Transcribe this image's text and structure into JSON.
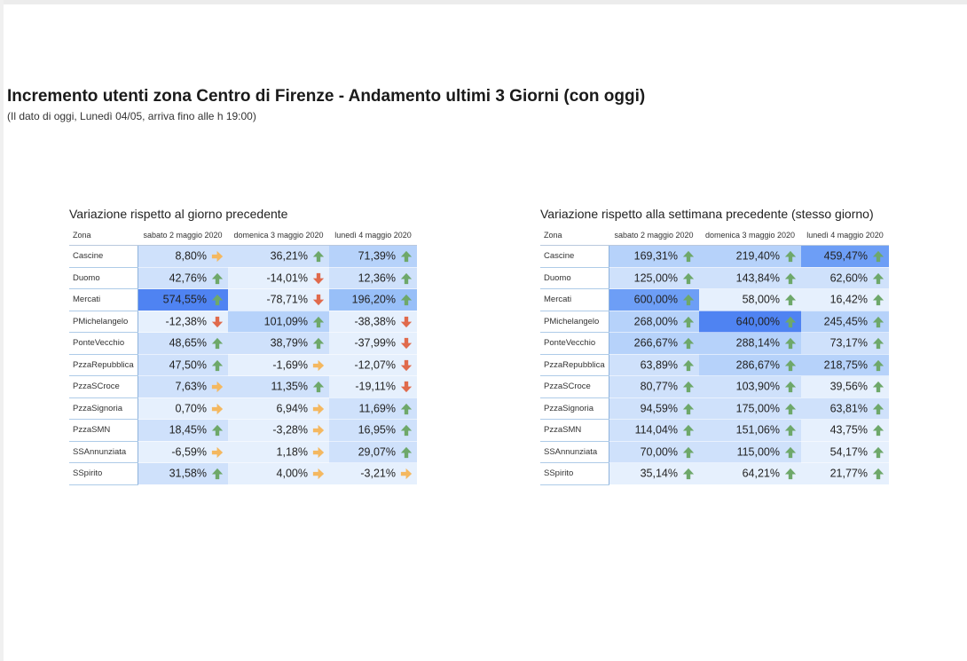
{
  "header": {
    "title": "Incremento utenti zona Centro di Firenze - Andamento ultimi 3 Giorni (con oggi)",
    "subtitle": "(Il dato di oggi, Lunedì 04/05, arriva fino alle h 19:00)"
  },
  "colors": {
    "up": "#6ea86a",
    "flat": "#f4b860",
    "down": "#e06a4c",
    "cell_scale": [
      "#e6f0fd",
      "#cfe1fb",
      "#b6d2fa",
      "#98bff8",
      "#6d9ef6",
      "#4f83f2"
    ]
  },
  "tables": [
    {
      "title": "Variazione rispetto al giorno precedente",
      "columns": [
        "Zona",
        "sabato 2 maggio 2020",
        "domenica 3 maggio 2020",
        "lunedì 4 maggio 2020"
      ],
      "rows": [
        {
          "zona": "Cascine",
          "cells": [
            {
              "value": "8,80%",
              "arrow": "right",
              "shade": 1
            },
            {
              "value": "36,21%",
              "arrow": "up",
              "shade": 1
            },
            {
              "value": "71,39%",
              "arrow": "up",
              "shade": 2
            }
          ]
        },
        {
          "zona": "Duomo",
          "cells": [
            {
              "value": "42,76%",
              "arrow": "up",
              "shade": 1
            },
            {
              "value": "-14,01%",
              "arrow": "down",
              "shade": 0
            },
            {
              "value": "12,36%",
              "arrow": "up",
              "shade": 1
            }
          ]
        },
        {
          "zona": "Mercati",
          "cells": [
            {
              "value": "574,55%",
              "arrow": "up",
              "shade": 5
            },
            {
              "value": "-78,71%",
              "arrow": "down",
              "shade": 0
            },
            {
              "value": "196,20%",
              "arrow": "up",
              "shade": 3
            }
          ]
        },
        {
          "zona": "PMichelangelo",
          "cells": [
            {
              "value": "-12,38%",
              "arrow": "down",
              "shade": 0
            },
            {
              "value": "101,09%",
              "arrow": "up",
              "shade": 2
            },
            {
              "value": "-38,38%",
              "arrow": "down",
              "shade": 0
            }
          ]
        },
        {
          "zona": "PonteVecchio",
          "cells": [
            {
              "value": "48,65%",
              "arrow": "up",
              "shade": 1
            },
            {
              "value": "38,79%",
              "arrow": "up",
              "shade": 1
            },
            {
              "value": "-37,99%",
              "arrow": "down",
              "shade": 0
            }
          ]
        },
        {
          "zona": "PzzaRepubblica",
          "cells": [
            {
              "value": "47,50%",
              "arrow": "up",
              "shade": 1
            },
            {
              "value": "-1,69%",
              "arrow": "right",
              "shade": 0
            },
            {
              "value": "-12,07%",
              "arrow": "down",
              "shade": 0
            }
          ]
        },
        {
          "zona": "PzzaSCroce",
          "cells": [
            {
              "value": "7,63%",
              "arrow": "right",
              "shade": 1
            },
            {
              "value": "11,35%",
              "arrow": "up",
              "shade": 1
            },
            {
              "value": "-19,11%",
              "arrow": "down",
              "shade": 0
            }
          ]
        },
        {
          "zona": "PzzaSignoria",
          "cells": [
            {
              "value": "0,70%",
              "arrow": "right",
              "shade": 0
            },
            {
              "value": "6,94%",
              "arrow": "right",
              "shade": 0
            },
            {
              "value": "11,69%",
              "arrow": "up",
              "shade": 1
            }
          ]
        },
        {
          "zona": "PzzaSMN",
          "cells": [
            {
              "value": "18,45%",
              "arrow": "up",
              "shade": 1
            },
            {
              "value": "-3,28%",
              "arrow": "right",
              "shade": 0
            },
            {
              "value": "16,95%",
              "arrow": "up",
              "shade": 1
            }
          ]
        },
        {
          "zona": "SSAnnunziata",
          "cells": [
            {
              "value": "-6,59%",
              "arrow": "right",
              "shade": 0
            },
            {
              "value": "1,18%",
              "arrow": "right",
              "shade": 0
            },
            {
              "value": "29,07%",
              "arrow": "up",
              "shade": 1
            }
          ]
        },
        {
          "zona": "SSpirito",
          "cells": [
            {
              "value": "31,58%",
              "arrow": "up",
              "shade": 1
            },
            {
              "value": "4,00%",
              "arrow": "right",
              "shade": 0
            },
            {
              "value": "-3,21%",
              "arrow": "right",
              "shade": 0
            }
          ]
        }
      ]
    },
    {
      "title": "Variazione rispetto alla settimana precedente (stesso giorno)",
      "columns": [
        "Zona",
        "sabato 2 maggio 2020",
        "domenica 3 maggio 2020",
        "lunedì 4 maggio 2020"
      ],
      "rows": [
        {
          "zona": "Cascine",
          "cells": [
            {
              "value": "169,31%",
              "arrow": "up",
              "shade": 2
            },
            {
              "value": "219,40%",
              "arrow": "up",
              "shade": 2
            },
            {
              "value": "459,47%",
              "arrow": "up",
              "shade": 4
            }
          ]
        },
        {
          "zona": "Duomo",
          "cells": [
            {
              "value": "125,00%",
              "arrow": "up",
              "shade": 1
            },
            {
              "value": "143,84%",
              "arrow": "up",
              "shade": 1
            },
            {
              "value": "62,60%",
              "arrow": "up",
              "shade": 1
            }
          ]
        },
        {
          "zona": "Mercati",
          "cells": [
            {
              "value": "600,00%",
              "arrow": "up",
              "shade": 4
            },
            {
              "value": "58,00%",
              "arrow": "up",
              "shade": 0
            },
            {
              "value": "16,42%",
              "arrow": "up",
              "shade": 0
            }
          ]
        },
        {
          "zona": "PMichelangelo",
          "cells": [
            {
              "value": "268,00%",
              "arrow": "up",
              "shade": 2
            },
            {
              "value": "640,00%",
              "arrow": "up",
              "shade": 5
            },
            {
              "value": "245,45%",
              "arrow": "up",
              "shade": 2
            }
          ]
        },
        {
          "zona": "PonteVecchio",
          "cells": [
            {
              "value": "266,67%",
              "arrow": "up",
              "shade": 2
            },
            {
              "value": "288,14%",
              "arrow": "up",
              "shade": 2
            },
            {
              "value": "73,17%",
              "arrow": "up",
              "shade": 1
            }
          ]
        },
        {
          "zona": "PzzaRepubblica",
          "cells": [
            {
              "value": "63,89%",
              "arrow": "up",
              "shade": 1
            },
            {
              "value": "286,67%",
              "arrow": "up",
              "shade": 2
            },
            {
              "value": "218,75%",
              "arrow": "up",
              "shade": 2
            }
          ]
        },
        {
          "zona": "PzzaSCroce",
          "cells": [
            {
              "value": "80,77%",
              "arrow": "up",
              "shade": 1
            },
            {
              "value": "103,90%",
              "arrow": "up",
              "shade": 1
            },
            {
              "value": "39,56%",
              "arrow": "up",
              "shade": 0
            }
          ]
        },
        {
          "zona": "PzzaSignoria",
          "cells": [
            {
              "value": "94,59%",
              "arrow": "up",
              "shade": 1
            },
            {
              "value": "175,00%",
              "arrow": "up",
              "shade": 1
            },
            {
              "value": "63,81%",
              "arrow": "up",
              "shade": 1
            }
          ]
        },
        {
          "zona": "PzzaSMN",
          "cells": [
            {
              "value": "114,04%",
              "arrow": "up",
              "shade": 1
            },
            {
              "value": "151,06%",
              "arrow": "up",
              "shade": 1
            },
            {
              "value": "43,75%",
              "arrow": "up",
              "shade": 0
            }
          ]
        },
        {
          "zona": "SSAnnunziata",
          "cells": [
            {
              "value": "70,00%",
              "arrow": "up",
              "shade": 1
            },
            {
              "value": "115,00%",
              "arrow": "up",
              "shade": 1
            },
            {
              "value": "54,17%",
              "arrow": "up",
              "shade": 0
            }
          ]
        },
        {
          "zona": "SSpirito",
          "cells": [
            {
              "value": "35,14%",
              "arrow": "up",
              "shade": 0
            },
            {
              "value": "64,21%",
              "arrow": "up",
              "shade": 0
            },
            {
              "value": "21,77%",
              "arrow": "up",
              "shade": 0
            }
          ]
        }
      ]
    }
  ]
}
